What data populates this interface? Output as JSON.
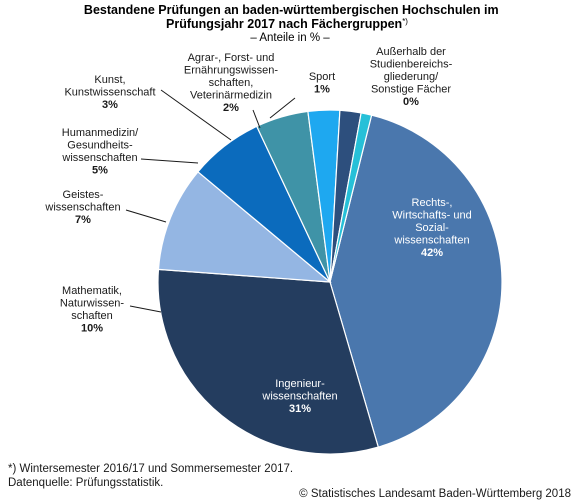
{
  "chart_data": {
    "type": "pie",
    "title_lines": [
      "Bestandene Prüfungen an baden-württembergischen Hochschulen im",
      "Prüfungsjahr 2017 nach Fächergruppen"
    ],
    "title_marker": "*)",
    "subtitle": "– Anteile in % –",
    "slices": [
      {
        "label_lines": [
          "Rechts-,",
          "Wirtschafts- und",
          "Sozial-",
          "wissenschaften"
        ],
        "value": 42,
        "value_label": "42%",
        "color": "#4a77ad",
        "label_color": "white"
      },
      {
        "label_lines": [
          "Ingenieur-",
          "wissenschaften"
        ],
        "value": 31,
        "value_label": "31%",
        "color": "#243d5f",
        "label_color": "white"
      },
      {
        "label_lines": [
          "Mathematik,",
          "Naturwissen-",
          "schaften"
        ],
        "value": 10,
        "value_label": "10%",
        "color": "#94b6e3",
        "label_color": "dark"
      },
      {
        "label_lines": [
          "Geistes-",
          "wissenschaften"
        ],
        "value": 7,
        "value_label": "7%",
        "color": "#0b6bbd",
        "label_color": "dark"
      },
      {
        "label_lines": [
          "Humanmedizin/",
          "Gesundheits-",
          "wissenschaften"
        ],
        "value": 5,
        "value_label": "5%",
        "color": "#3f93a7",
        "label_color": "dark"
      },
      {
        "label_lines": [
          "Kunst,",
          "Kunstwissenschaft"
        ],
        "value": 3,
        "value_label": "3%",
        "color": "#1ea8f0",
        "label_color": "dark"
      },
      {
        "label_lines": [
          "Agrar-, Forst- und",
          "Ernährungswissen-",
          "schaften,",
          "Veterinärmedizin"
        ],
        "value": 2,
        "value_label": "2%",
        "color": "#2d4f7d",
        "label_color": "dark"
      },
      {
        "label_lines": [
          "Sport"
        ],
        "value": 1,
        "value_label": "1%",
        "color": "#26c0d8",
        "label_color": "dark"
      },
      {
        "label_lines": [
          "Außerhalb der",
          "Studienbereichs-",
          "gliederung/",
          "Sonstige Fächer"
        ],
        "value": 0,
        "value_label": "0%",
        "color": "#ffffff",
        "label_color": "dark"
      }
    ]
  },
  "footnote": "*) Wintersemester 2016/17 und Sommersemester 2017.",
  "source": "Datenquelle: Prüfungsstatistik.",
  "copyright": "© Statistisches Landesamt Baden-Württemberg 2018"
}
